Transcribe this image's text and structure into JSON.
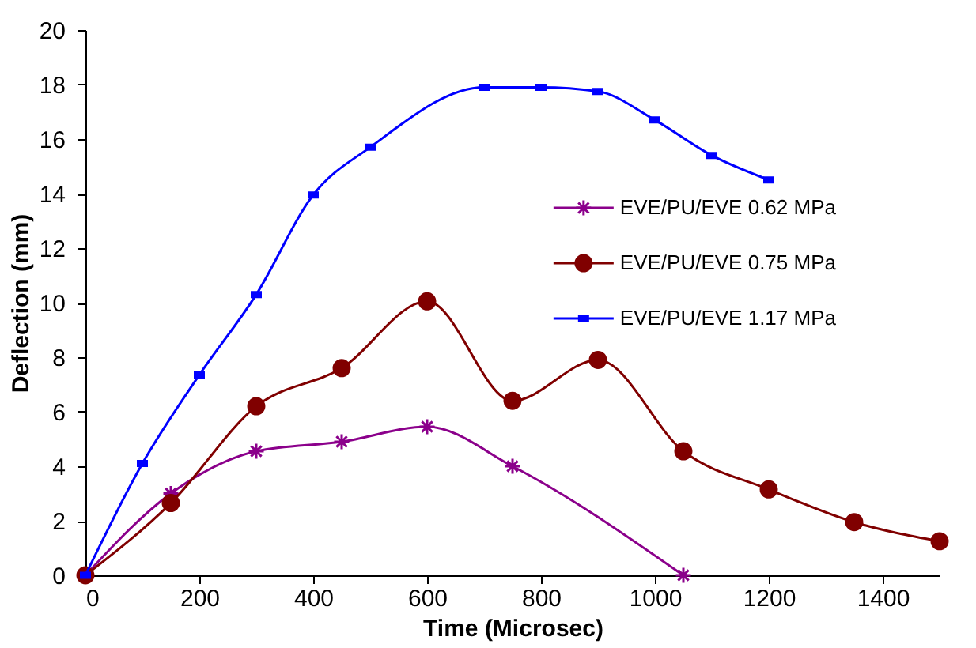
{
  "chart_data": {
    "type": "line",
    "xlabel": "Time (Microsec)",
    "ylabel": "Deflection (mm)",
    "xlim": [
      0,
      1500
    ],
    "xticks": [
      0,
      200,
      400,
      600,
      800,
      1000,
      1200,
      1400
    ],
    "ylim": [
      0,
      20
    ],
    "yticks": [
      0,
      2,
      4,
      6,
      8,
      10,
      12,
      14,
      16,
      18,
      20
    ],
    "grid": false,
    "legend": "right",
    "line_style": "solid",
    "series": [
      {
        "name": "EVE/PU/EVE 0.62 MPa",
        "color": "#8b008b",
        "marker": "cross",
        "x": [
          0,
          150,
          300,
          450,
          600,
          750,
          1050
        ],
        "values": [
          0,
          3.0,
          4.55,
          4.9,
          5.45,
          4.0,
          0
        ]
      },
      {
        "name": "EVE/PU/EVE 0.75 MPa",
        "color": "#800000",
        "marker": "circle",
        "x": [
          0,
          150,
          300,
          450,
          600,
          750,
          900,
          1050,
          1200,
          1350,
          1500
        ],
        "values": [
          0,
          2.65,
          6.2,
          7.6,
          10.05,
          6.4,
          7.9,
          4.55,
          3.15,
          1.95,
          1.25
        ]
      },
      {
        "name": "EVE/PU/EVE 1.17 MPa",
        "color": "#0000ff",
        "marker": "square",
        "x": [
          0,
          100,
          200,
          300,
          400,
          500,
          700,
          800,
          900,
          1000,
          1100,
          1200
        ],
        "values": [
          0,
          4.1,
          7.35,
          10.3,
          13.95,
          15.7,
          17.9,
          17.9,
          17.75,
          16.7,
          15.4,
          14.5
        ]
      }
    ]
  }
}
